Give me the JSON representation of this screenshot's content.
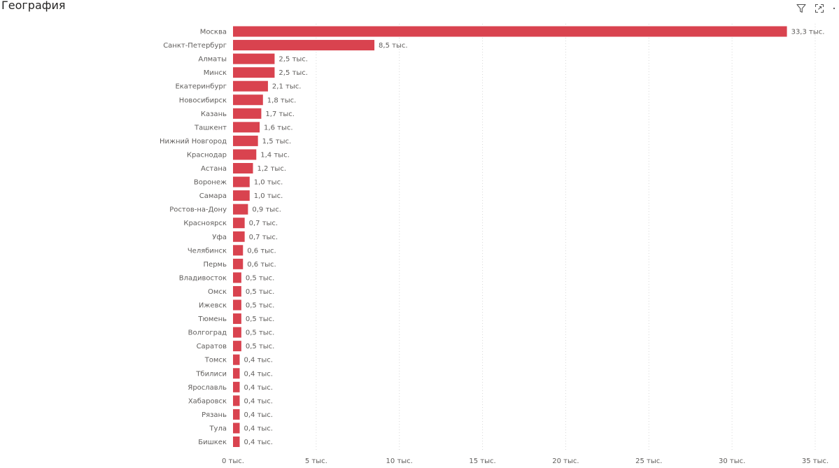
{
  "header": {
    "title": "География",
    "icons": [
      "filter-icon",
      "focus-mode-icon",
      "more-options-icon"
    ]
  },
  "colors": {
    "bar": "#d9434f",
    "label": "#605e5c",
    "grid": "#d8d8d8"
  },
  "chart_data": {
    "type": "bar",
    "orientation": "horizontal",
    "title": "География",
    "xlabel": "",
    "ylabel": "",
    "xlim": [
      0,
      35000
    ],
    "grid": true,
    "x_ticks": [
      {
        "value": 0,
        "label": "0 тыс."
      },
      {
        "value": 5000,
        "label": "5 тыс."
      },
      {
        "value": 10000,
        "label": "10 тыс."
      },
      {
        "value": 15000,
        "label": "15 тыс."
      },
      {
        "value": 20000,
        "label": "20 тыс."
      },
      {
        "value": 25000,
        "label": "25 тыс."
      },
      {
        "value": 30000,
        "label": "30 тыс."
      },
      {
        "value": 35000,
        "label": "35 тыс."
      }
    ],
    "categories": [
      "Москва",
      "Санкт-Петербург",
      "Алматы",
      "Минск",
      "Екатеринбург",
      "Новосибирск",
      "Казань",
      "Ташкент",
      "Нижний Новгород",
      "Краснодар",
      "Астана",
      "Воронеж",
      "Самара",
      "Ростов-на-Дону",
      "Красноярск",
      "Уфа",
      "Челябинск",
      "Пермь",
      "Владивосток",
      "Омск",
      "Ижевск",
      "Тюмень",
      "Волгоград",
      "Саратов",
      "Томск",
      "Тбилиси",
      "Ярославль",
      "Хабаровск",
      "Рязань",
      "Тула",
      "Бишкек"
    ],
    "values": [
      33300,
      8500,
      2500,
      2500,
      2100,
      1800,
      1700,
      1600,
      1500,
      1400,
      1200,
      1000,
      1000,
      900,
      700,
      700,
      600,
      600,
      500,
      500,
      500,
      500,
      500,
      500,
      400,
      400,
      400,
      400,
      400,
      400,
      400
    ],
    "data_labels": [
      "33,3 тыс.",
      "8,5 тыс.",
      "2,5 тыс.",
      "2,5 тыс.",
      "2,1 тыс.",
      "1,8 тыс.",
      "1,7 тыс.",
      "1,6 тыс.",
      "1,5 тыс.",
      "1,4 тыс.",
      "1,2 тыс.",
      "1,0 тыс.",
      "1,0 тыс.",
      "0,9 тыс.",
      "0,7 тыс.",
      "0,7 тыс.",
      "0,6 тыс.",
      "0,6 тыс.",
      "0,5 тыс.",
      "0,5 тыс.",
      "0,5 тыс.",
      "0,5 тыс.",
      "0,5 тыс.",
      "0,5 тыс.",
      "0,4 тыс.",
      "0,4 тыс.",
      "0,4 тыс.",
      "0,4 тыс.",
      "0,4 тыс.",
      "0,4 тыс.",
      "0,4 тыс."
    ]
  }
}
